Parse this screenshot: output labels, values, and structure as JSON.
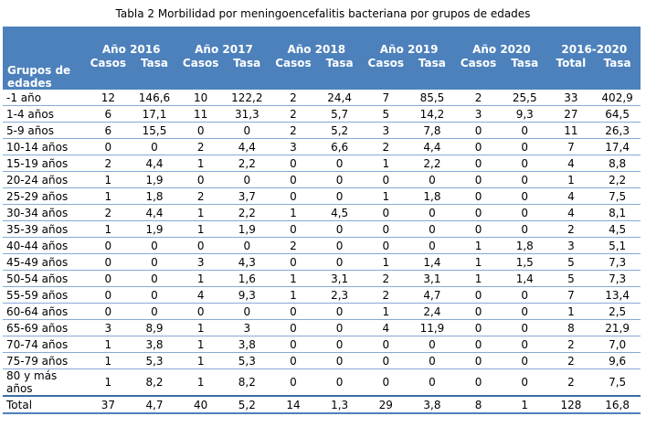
{
  "title": "Tabla 2 Morbilidad por meningoencefalitis bacteriana por grupos de edades",
  "colors": {
    "header_bg": "#4d81bc",
    "header_text": "#ffffff",
    "row_line": "#87a9d6",
    "strong_line": "#3d6ba3",
    "text": "#000000"
  },
  "table": {
    "header": {
      "row_label": "Grupos de edades",
      "groups": [
        {
          "label": "Año 2016",
          "sub": [
            "Casos",
            "Tasa"
          ]
        },
        {
          "label": "Año 2017",
          "sub": [
            "Casos",
            "Tasa"
          ]
        },
        {
          "label": "Año 2018",
          "sub": [
            "Casos",
            "Tasa"
          ]
        },
        {
          "label": "Año 2019",
          "sub": [
            "Casos",
            "Tasa"
          ]
        },
        {
          "label": "Año 2020",
          "sub": [
            "Casos",
            "Tasa"
          ]
        },
        {
          "label": "2016-2020",
          "sub": [
            "Total",
            "Tasa"
          ]
        }
      ]
    },
    "rows": [
      {
        "label": "-1 año",
        "values": [
          "12",
          "146,6",
          "10",
          "122,2",
          "2",
          "24,4",
          "7",
          "85,5",
          "2",
          "25,5",
          "33",
          "402,9"
        ]
      },
      {
        "label": "1-4 años",
        "values": [
          "6",
          "17,1",
          "11",
          "31,3",
          "2",
          "5,7",
          "5",
          "14,2",
          "3",
          "9,3",
          "27",
          "64,5"
        ]
      },
      {
        "label": "5-9 años",
        "values": [
          "6",
          "15,5",
          "0",
          "0",
          "2",
          "5,2",
          "3",
          "7,8",
          "0",
          "0",
          "11",
          "26,3"
        ]
      },
      {
        "label": "10-14 años",
        "values": [
          "0",
          "0",
          "2",
          "4,4",
          "3",
          "6,6",
          "2",
          "4,4",
          "0",
          "0",
          "7",
          "17,4"
        ]
      },
      {
        "label": "15-19 años",
        "values": [
          "2",
          "4,4",
          "1",
          "2,2",
          "0",
          "0",
          "1",
          "2,2",
          "0",
          "0",
          "4",
          "8,8"
        ]
      },
      {
        "label": "20-24 años",
        "values": [
          "1",
          "1,9",
          "0",
          "0",
          "0",
          "0",
          "0",
          "0",
          "0",
          "0",
          "1",
          "2,2"
        ]
      },
      {
        "label": "25-29 años",
        "values": [
          "1",
          "1,8",
          "2",
          "3,7",
          "0",
          "0",
          "1",
          "1,8",
          "0",
          "0",
          "4",
          "7,5"
        ]
      },
      {
        "label": "30-34 años",
        "values": [
          "2",
          "4,4",
          "1",
          "2,2",
          "1",
          "4,5",
          "0",
          "0",
          "0",
          "0",
          "4",
          "8,1"
        ]
      },
      {
        "label": "35-39 años",
        "values": [
          "1",
          "1,9",
          "1",
          "1,9",
          "0",
          "0",
          "0",
          "0",
          "0",
          "0",
          "2",
          "4,5"
        ]
      },
      {
        "label": "40-44 años",
        "values": [
          "0",
          "0",
          "0",
          "0",
          "2",
          "0",
          "0",
          "0",
          "1",
          "1,8",
          "3",
          "5,1"
        ]
      },
      {
        "label": "45-49 años",
        "values": [
          "0",
          "0",
          "3",
          "4,3",
          "0",
          "0",
          "1",
          "1,4",
          "1",
          "1,5",
          "5",
          "7,3"
        ]
      },
      {
        "label": "50-54 años",
        "values": [
          "0",
          "0",
          "1",
          "1,6",
          "1",
          "3,1",
          "2",
          "3,1",
          "1",
          "1,4",
          "5",
          "7,3"
        ]
      },
      {
        "label": "55-59 años",
        "values": [
          "0",
          "0",
          "4",
          "9,3",
          "1",
          "2,3",
          "2",
          "4,7",
          "0",
          "0",
          "7",
          "13,4"
        ]
      },
      {
        "label": "60-64 años",
        "values": [
          "0",
          "0",
          "0",
          "0",
          "0",
          "0",
          "1",
          "2,4",
          "0",
          "0",
          "1",
          "2,5"
        ]
      },
      {
        "label": "65-69 años",
        "values": [
          "3",
          "8,9",
          "1",
          "3",
          "0",
          "0",
          "4",
          "11,9",
          "0",
          "0",
          "8",
          "21,9"
        ]
      },
      {
        "label": "70-74 años",
        "values": [
          "1",
          "3,8",
          "1",
          "3,8",
          "0",
          "0",
          "0",
          "0",
          "0",
          "0",
          "2",
          "7,0"
        ]
      },
      {
        "label": "75-79 años",
        "values": [
          "1",
          "5,3",
          "1",
          "5,3",
          "0",
          "0",
          "0",
          "0",
          "0",
          "0",
          "2",
          "9,6"
        ]
      },
      {
        "label": "80 y más años",
        "values": [
          "1",
          "8,2",
          "1",
          "8,2",
          "0",
          "0",
          "0",
          "0",
          "0",
          "0",
          "2",
          "7,5"
        ]
      },
      {
        "label": "Total",
        "values": [
          "37",
          "4,7",
          "40",
          "5,2",
          "14",
          "1,3",
          "29",
          "3,8",
          "8",
          "1",
          "128",
          "16,8"
        ],
        "is_total": true
      }
    ]
  }
}
